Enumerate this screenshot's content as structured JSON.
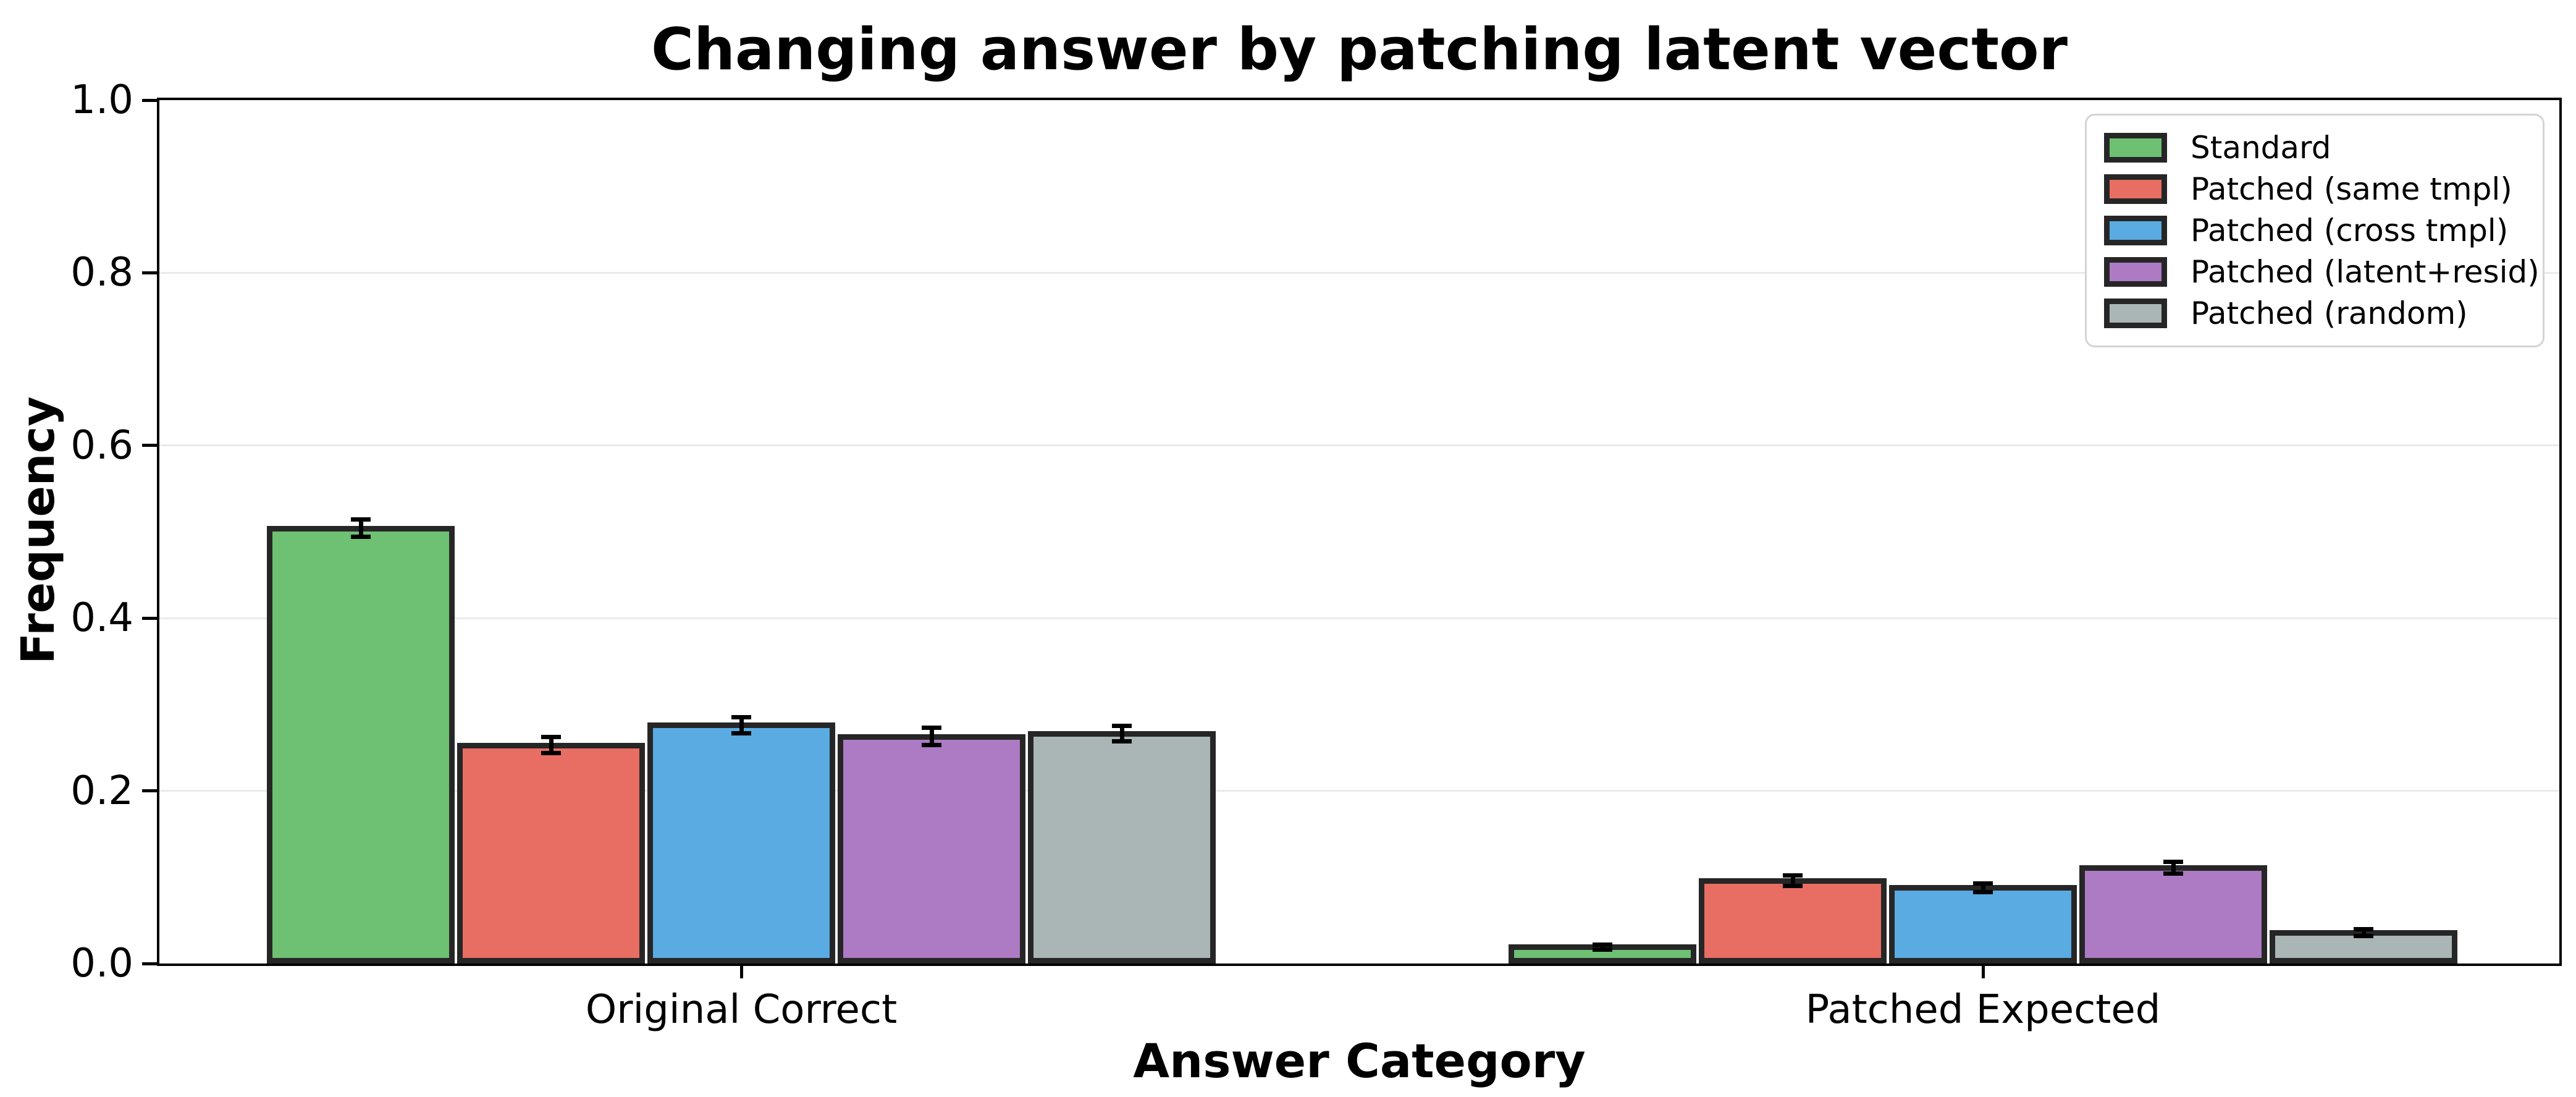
{
  "chart_data": {
    "type": "bar",
    "title": "Changing answer by patching latent vector",
    "xlabel": "Answer Category",
    "ylabel": "Frequency",
    "categories": [
      "Original Correct",
      "Patched Expected"
    ],
    "series": [
      {
        "name": "Standard",
        "color": "#6ec073",
        "values": [
          0.504,
          0.019
        ],
        "errors": [
          0.01,
          0.003
        ]
      },
      {
        "name": "Patched (same tmpl)",
        "color": "#e86e64",
        "values": [
          0.253,
          0.096
        ],
        "errors": [
          0.009,
          0.006
        ]
      },
      {
        "name": "Patched (cross tmpl)",
        "color": "#5aabe2",
        "values": [
          0.276,
          0.088
        ],
        "errors": [
          0.009,
          0.005
        ]
      },
      {
        "name": "Patched (latent+resid)",
        "color": "#ad7ac4",
        "values": [
          0.263,
          0.111
        ],
        "errors": [
          0.01,
          0.007
        ]
      },
      {
        "name": "Patched (random)",
        "color": "#a9b6b5",
        "values": [
          0.266,
          0.036
        ],
        "errors": [
          0.009,
          0.004
        ]
      }
    ],
    "ylim": [
      0.0,
      1.0
    ],
    "yticks": [
      "0.0",
      "0.2",
      "0.4",
      "0.6",
      "0.8",
      "1.0"
    ],
    "grid": "horizontal",
    "grid_color": "#eaeaea",
    "bar_edge_color": "#262626",
    "error_bar_color": "#000000",
    "legend_position": "upper right",
    "legend_border_color": "#d4d4d4"
  }
}
